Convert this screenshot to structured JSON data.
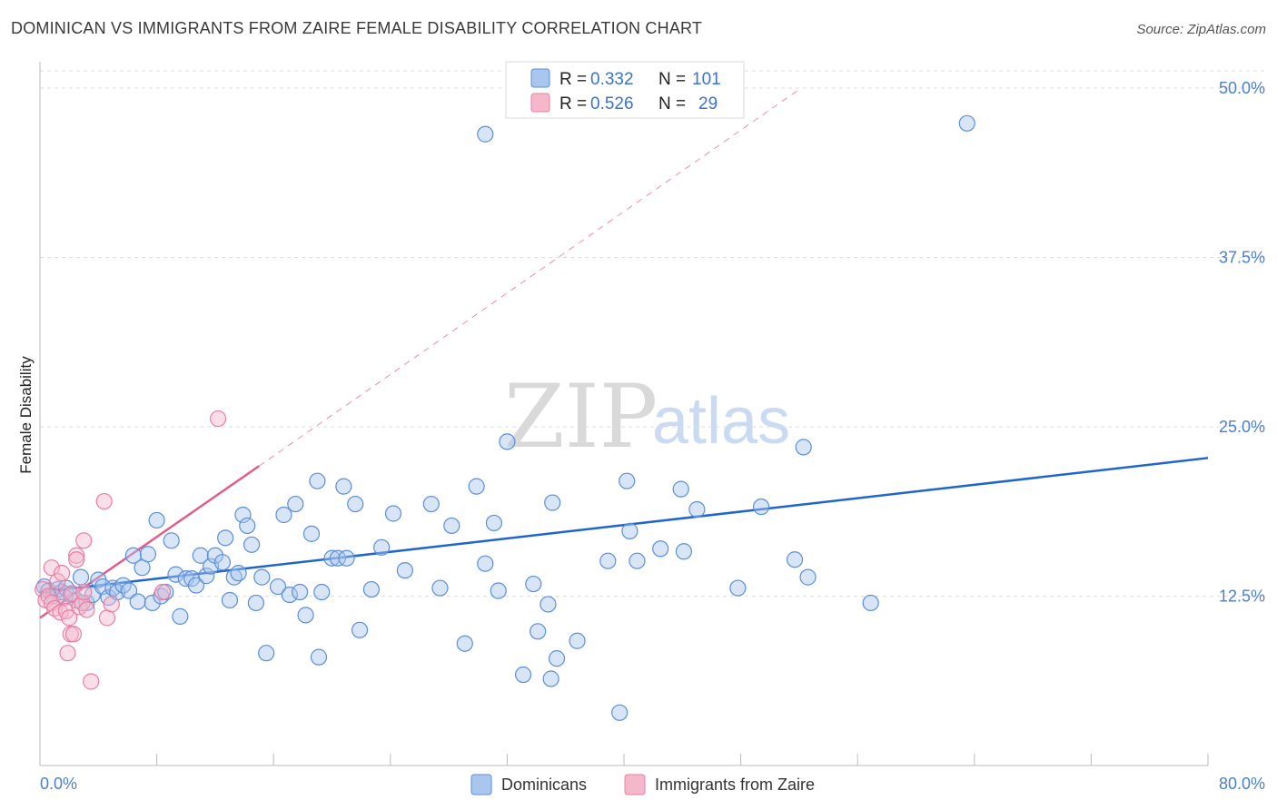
{
  "title": "DOMINICAN VS IMMIGRANTS FROM ZAIRE FEMALE DISABILITY CORRELATION CHART",
  "source": "Source: ZipAtlas.com",
  "watermark": {
    "zip": "ZIP",
    "atlas": "atlas"
  },
  "colors": {
    "blue_fill": "#a9c6ee",
    "blue_stroke": "#5b8fd9",
    "blue_line": "#1f66cc",
    "pink_fill": "#f5b8cb",
    "pink_stroke": "#e87fa2",
    "pink_line": "#e05c8c",
    "tick": "#4a7fd1",
    "grid": "#dddddd"
  },
  "legend": {
    "rows": [
      {
        "r_label": "R =",
        "r_value": "0.332",
        "n_label": "N =",
        "n_value": "101",
        "series": "blue"
      },
      {
        "r_label": "R =",
        "r_value": "0.526",
        "n_label": "N =",
        "n_value": "29",
        "series": "pink"
      }
    ]
  },
  "chart_data": {
    "type": "scatter",
    "title": "DOMINICAN VS IMMIGRANTS FROM ZAIRE FEMALE DISABILITY CORRELATION CHART",
    "xlabel": "",
    "ylabel": "Female Disability",
    "xlim": [
      0,
      80
    ],
    "ylim": [
      0,
      50
    ],
    "x_tick_labels": [
      "0.0%",
      "80.0%"
    ],
    "y_ticks": [
      12.5,
      25.0,
      37.5,
      50.0
    ],
    "y_tick_labels": [
      "12.5%",
      "25.0%",
      "37.5%",
      "50.0%"
    ],
    "legend_position": "bottom",
    "series": [
      {
        "name": "Dominicans",
        "color": "#a9c6ee",
        "trend": {
          "x": [
            0,
            80
          ],
          "y": [
            12.8,
            22.7
          ],
          "style": "solid"
        },
        "points": [
          [
            0.3,
            13.2
          ],
          [
            0.6,
            12.9
          ],
          [
            0.9,
            12.5
          ],
          [
            1.2,
            13.0
          ],
          [
            1.5,
            12.8
          ],
          [
            1.8,
            13.1
          ],
          [
            2.1,
            12.6
          ],
          [
            2.5,
            12.2
          ],
          [
            2.8,
            13.9
          ],
          [
            3.2,
            12.0
          ],
          [
            3.6,
            12.6
          ],
          [
            4.0,
            13.7
          ],
          [
            4.3,
            13.2
          ],
          [
            4.7,
            12.4
          ],
          [
            5.0,
            13.1
          ],
          [
            5.3,
            12.8
          ],
          [
            5.7,
            13.3
          ],
          [
            6.1,
            12.9
          ],
          [
            6.4,
            15.5
          ],
          [
            6.7,
            12.1
          ],
          [
            7.0,
            14.6
          ],
          [
            7.4,
            15.6
          ],
          [
            7.7,
            12.0
          ],
          [
            8.0,
            18.1
          ],
          [
            8.3,
            12.5
          ],
          [
            8.6,
            12.8
          ],
          [
            9.0,
            16.6
          ],
          [
            9.3,
            14.1
          ],
          [
            9.6,
            11.0
          ],
          [
            10.0,
            13.8
          ],
          [
            10.4,
            13.8
          ],
          [
            10.7,
            13.3
          ],
          [
            11.0,
            15.5
          ],
          [
            11.4,
            14.0
          ],
          [
            11.7,
            14.7
          ],
          [
            12.0,
            15.5
          ],
          [
            12.5,
            15.0
          ],
          [
            12.7,
            16.8
          ],
          [
            13.0,
            12.2
          ],
          [
            13.3,
            13.9
          ],
          [
            13.6,
            14.2
          ],
          [
            13.9,
            18.5
          ],
          [
            14.2,
            17.7
          ],
          [
            14.5,
            16.3
          ],
          [
            14.8,
            12.0
          ],
          [
            15.2,
            13.9
          ],
          [
            15.5,
            8.3
          ],
          [
            16.3,
            13.2
          ],
          [
            16.7,
            18.5
          ],
          [
            17.1,
            12.6
          ],
          [
            17.5,
            19.3
          ],
          [
            17.8,
            12.8
          ],
          [
            18.2,
            11.1
          ],
          [
            18.6,
            17.1
          ],
          [
            19.0,
            21.0
          ],
          [
            19.3,
            12.8
          ],
          [
            20.0,
            15.3
          ],
          [
            20.4,
            15.3
          ],
          [
            20.8,
            20.6
          ],
          [
            21.0,
            15.3
          ],
          [
            21.6,
            19.3
          ],
          [
            21.9,
            10.0
          ],
          [
            22.7,
            13.0
          ],
          [
            23.4,
            16.1
          ],
          [
            24.2,
            18.6
          ],
          [
            25.0,
            14.4
          ],
          [
            26.8,
            19.3
          ],
          [
            27.4,
            13.1
          ],
          [
            28.2,
            17.7
          ],
          [
            29.1,
            9.0
          ],
          [
            29.9,
            20.6
          ],
          [
            30.5,
            14.9
          ],
          [
            31.1,
            17.9
          ],
          [
            31.4,
            12.9
          ],
          [
            32.0,
            23.9
          ],
          [
            33.1,
            6.7
          ],
          [
            33.8,
            13.4
          ],
          [
            34.1,
            9.9
          ],
          [
            34.8,
            11.9
          ],
          [
            35.1,
            19.4
          ],
          [
            35.4,
            7.9
          ],
          [
            35.0,
            6.4
          ],
          [
            36.8,
            9.2
          ],
          [
            38.9,
            15.1
          ],
          [
            39.7,
            3.9
          ],
          [
            40.2,
            21.0
          ],
          [
            40.4,
            17.3
          ],
          [
            40.9,
            15.1
          ],
          [
            42.5,
            16.0
          ],
          [
            43.9,
            20.4
          ],
          [
            44.1,
            15.8
          ],
          [
            45.0,
            18.9
          ],
          [
            47.8,
            13.1
          ],
          [
            49.4,
            19.1
          ],
          [
            51.7,
            15.2
          ],
          [
            52.3,
            23.5
          ],
          [
            52.6,
            13.9
          ],
          [
            56.9,
            12.0
          ],
          [
            19.1,
            8.0
          ],
          [
            30.5,
            46.6
          ],
          [
            63.5,
            47.4
          ]
        ]
      },
      {
        "name": "Immigrants from Zaire",
        "color": "#f5b8cb",
        "trend": {
          "x": [
            0,
            15
          ],
          "y": [
            10.9,
            22.1
          ],
          "style": "solid",
          "extended": {
            "x": [
              15,
              52
            ],
            "y": [
              22.1,
              49.9
            ],
            "style": "dashed"
          }
        },
        "points": [
          [
            0.2,
            13.0
          ],
          [
            0.4,
            12.2
          ],
          [
            0.6,
            12.5
          ],
          [
            0.8,
            12.0
          ],
          [
            0.8,
            14.6
          ],
          [
            1.0,
            11.6
          ],
          [
            1.2,
            13.6
          ],
          [
            1.4,
            11.3
          ],
          [
            1.5,
            14.2
          ],
          [
            1.7,
            12.4
          ],
          [
            1.8,
            11.4
          ],
          [
            1.9,
            8.3
          ],
          [
            2.0,
            10.9
          ],
          [
            2.1,
            9.7
          ],
          [
            2.2,
            12.7
          ],
          [
            2.3,
            9.7
          ],
          [
            2.5,
            15.5
          ],
          [
            2.5,
            15.2
          ],
          [
            2.7,
            11.7
          ],
          [
            2.9,
            12.0
          ],
          [
            3.0,
            12.8
          ],
          [
            3.0,
            16.6
          ],
          [
            3.2,
            11.5
          ],
          [
            3.5,
            6.2
          ],
          [
            4.4,
            19.5
          ],
          [
            4.6,
            10.9
          ],
          [
            4.9,
            11.9
          ],
          [
            8.4,
            12.8
          ],
          [
            12.2,
            25.6
          ]
        ]
      }
    ]
  },
  "bottom_legend": [
    {
      "label": "Dominicans",
      "series": "blue"
    },
    {
      "label": "Immigrants from Zaire",
      "series": "pink"
    }
  ]
}
